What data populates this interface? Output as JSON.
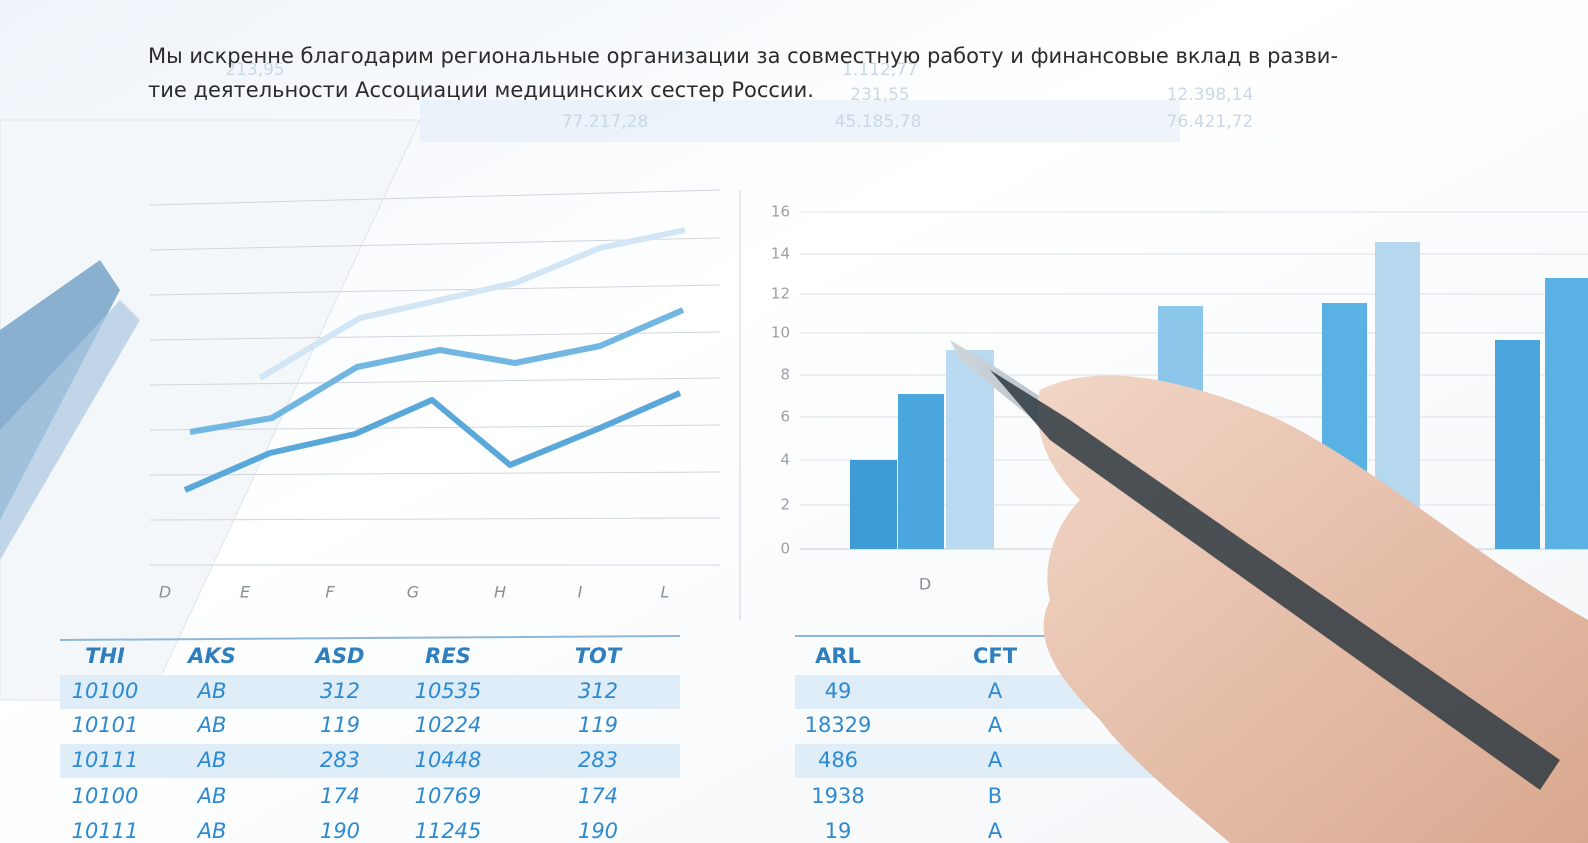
{
  "text": {
    "lines": [
      "Мы искренне благодарим региональные организации за совместную работу и финансовые вклад в разви-",
      "тие деятельности Ассоциации медицинских сестер России."
    ]
  },
  "faded_numbers": [
    "213,95",
    "1.112,77",
    "231,55",
    "12.398,14",
    "77.217,28",
    "45.185,78",
    "76.421,72"
  ],
  "line_chart": {
    "x_labels": [
      "D",
      "E",
      "F",
      "G",
      "H",
      "I",
      "L"
    ]
  },
  "bar_chart": {
    "y_labels": [
      "16",
      "14",
      "12",
      "10",
      "8",
      "6",
      "4",
      "2",
      "0"
    ],
    "x_label": "D"
  },
  "table_left": {
    "header": [
      "THI",
      "AKS",
      "ASD",
      "RES",
      "TOT"
    ],
    "rows": [
      [
        "10100",
        "AB",
        "312",
        "10535",
        "312"
      ],
      [
        "10101",
        "AB",
        "119",
        "10224",
        "119"
      ],
      [
        "10111",
        "AB",
        "283",
        "10448",
        "283"
      ],
      [
        "10100",
        "AB",
        "174",
        "10769",
        "174"
      ],
      [
        "10111",
        "AB",
        "190",
        "11245",
        "190"
      ]
    ]
  },
  "table_right": {
    "header": [
      "ARL",
      "CFT"
    ],
    "rows": [
      [
        "49",
        "A"
      ],
      [
        "18329",
        "A"
      ],
      [
        "486",
        "A"
      ],
      [
        "1938",
        "B"
      ],
      [
        "19",
        "A"
      ]
    ]
  }
}
